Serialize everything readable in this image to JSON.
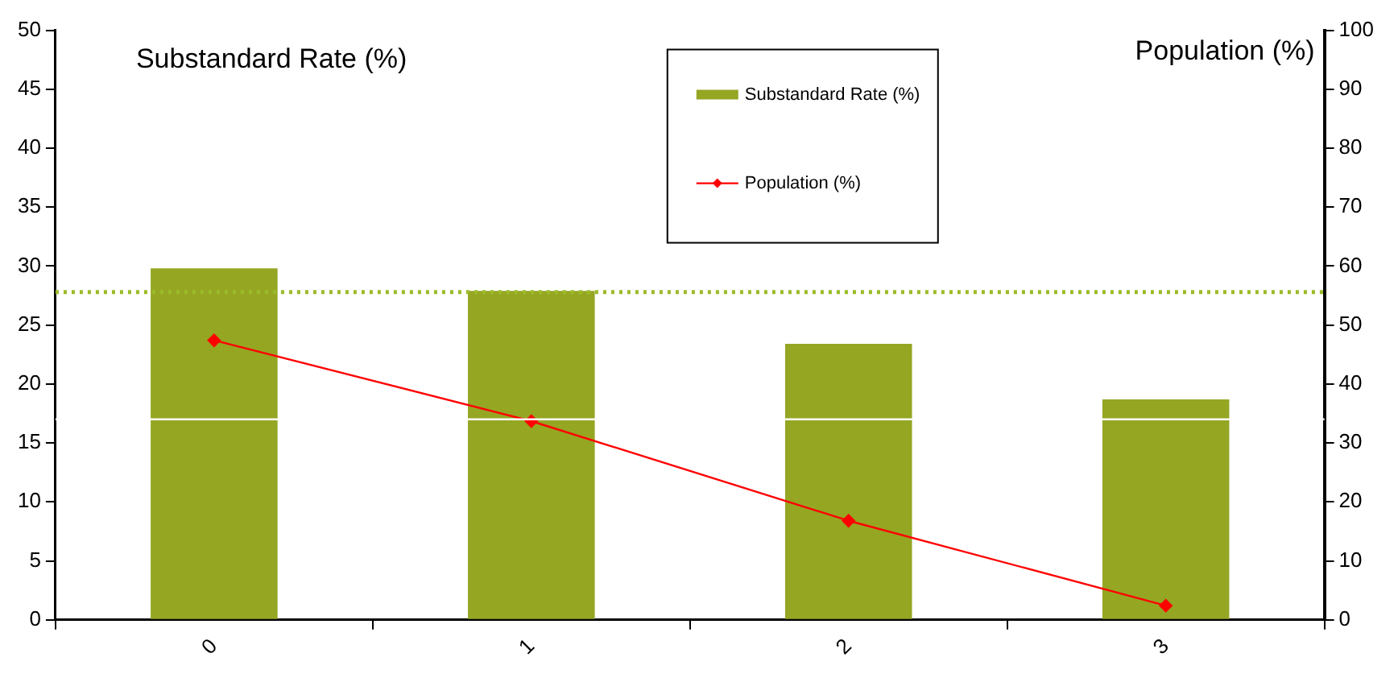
{
  "chart_data": {
    "type": "bar",
    "ylabel": "Substandard Rate (%)",
    "y2label": "Population (%)",
    "categories": [
      "0",
      "1",
      "2",
      "3"
    ],
    "series": [
      {
        "name": "Substandard Rate (%)",
        "color": "#95a623",
        "values": [
          29.8,
          27.9,
          23.4,
          18.7
        ]
      },
      {
        "name": "Population (%)",
        "type": "line",
        "axis": "y2",
        "color": "#ff0000",
        "values": [
          47.4,
          33.7,
          16.8,
          2.4
        ]
      }
    ],
    "ylim": [
      0,
      50
    ],
    "yticks": [
      0,
      5,
      10,
      15,
      20,
      25,
      30,
      35,
      40,
      45,
      50
    ],
    "y2lim": [
      0,
      100
    ],
    "y2ticks": [
      0,
      10,
      20,
      30,
      40,
      50,
      60,
      70,
      80,
      90,
      100
    ],
    "ref_lines": [
      {
        "axis": "y",
        "value": 27.8,
        "color": "#9bbb2a",
        "line_style": "dotted"
      },
      {
        "axis": "y",
        "value": 17,
        "color": "#ffffff",
        "line_style": "solid"
      }
    ],
    "grid": false,
    "legend": "top",
    "marker": "diamond",
    "line_style": "solid"
  }
}
